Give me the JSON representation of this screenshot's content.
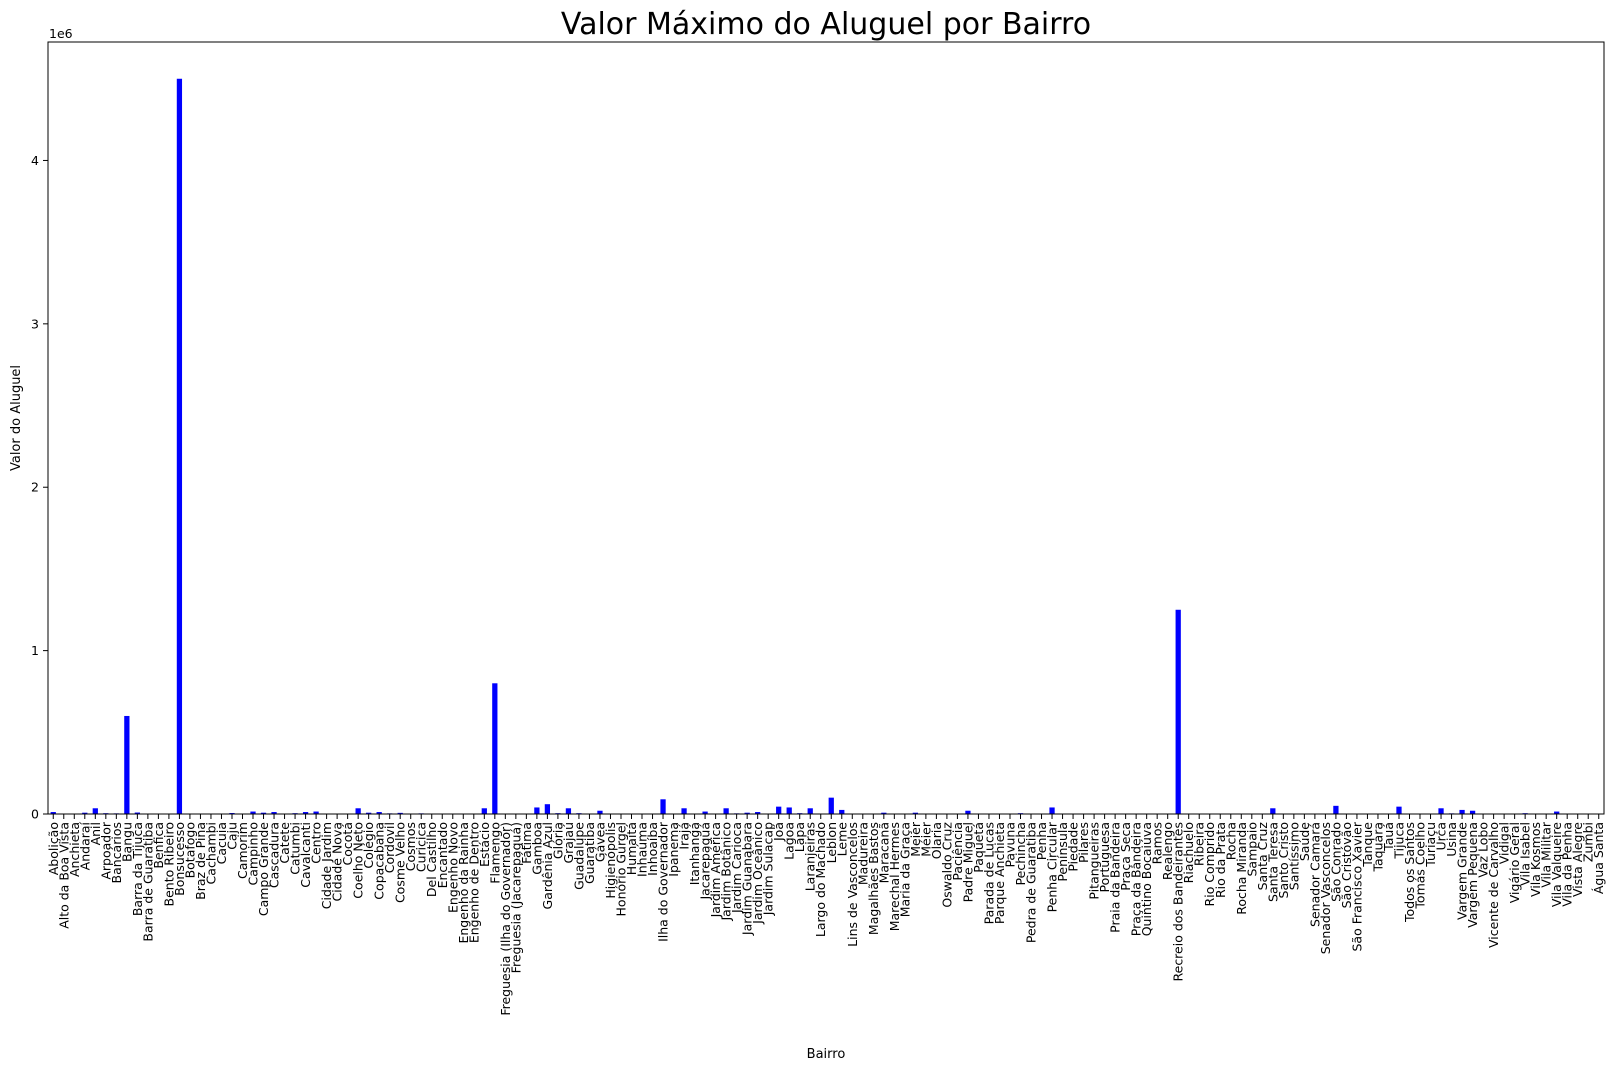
{
  "chart_data": {
    "type": "bar",
    "title": "Valor Máximo do Aluguel por Bairro",
    "xlabel": "Bairro",
    "ylabel": "Valor do Aluguel",
    "offset_text": "1e6",
    "ylim": [
      0,
      4725000
    ],
    "yticks": [
      0,
      1000000,
      2000000,
      3000000,
      4000000
    ],
    "ytick_labels": [
      "0",
      "1",
      "2",
      "3",
      "4"
    ],
    "bar_color": "#0000ff",
    "grid": false,
    "categories": [
      "Abolição",
      "Alto da Boa Vista",
      "Anchieta",
      "Andaraí",
      "Anil",
      "Arpoador",
      "Bancários",
      "Bangu",
      "Barra da Tijuca",
      "Barra de Guaratiba",
      "Benfica",
      "Bento Ribeiro",
      "Bonsucesso",
      "Botafogo",
      "Braz de Pina",
      "Cachambi",
      "Cacuia",
      "Caju",
      "Camorim",
      "Campinho",
      "Campo Grande",
      "Cascadura",
      "Catete",
      "Catumbi",
      "Cavalcanti",
      "Centro",
      "Cidade Jardim",
      "Cidade Nova",
      "Cocotá",
      "Coelho Neto",
      "Colégio",
      "Copacabana",
      "Cordovil",
      "Cosme Velho",
      "Cosmos",
      "Curicica",
      "Del Castilho",
      "Encantado",
      "Engenho Novo",
      "Engenho da Rainha",
      "Engenho de Dentro",
      "Estácio",
      "Flamengo",
      "Freguesia (Ilha do Governador)",
      "Freguesia (Jacarepaguá)",
      "Fátima",
      "Gamboa",
      "Gardênia Azul",
      "Glória",
      "Grajaú",
      "Guadalupe",
      "Guaratiba",
      "Gávea",
      "Higienópolis",
      "Honório Gurgel",
      "Humaitá",
      "Inhaúma",
      "Inhoaíba",
      "Ilha do Governador",
      "Ipanema",
      "Irajá",
      "Itanhangá",
      "Jacarepaguá",
      "Jardim América",
      "Jardim Botânico",
      "Jardim Carioca",
      "Jardim Guanabara",
      "Jardim Oceânico",
      "Jardim Sulacap",
      "Joá",
      "Lagoa",
      "Lapa",
      "Laranjeiras",
      "Largo do Machado",
      "Leblon",
      "Leme",
      "Lins de Vasconcelos",
      "Madureira",
      "Magalhães Bastos",
      "Maracanã",
      "Marechal Hermes",
      "Maria da Graça",
      "Meier",
      "Méier",
      "Olaria",
      "Oswaldo Cruz",
      "Paciência",
      "Padre Miguel",
      "Paquetá",
      "Parada de Lucas",
      "Parque Anchieta",
      "Pavuna",
      "Pechincha",
      "Pedra de Guaratiba",
      "Penha",
      "Penha Circular",
      "Península",
      "Piedade",
      "Pilares",
      "Pitangueiras",
      "Portuguesa",
      "Praia da Bandeira",
      "Praça Seca",
      "Praça da Bandeira",
      "Quintino Bocaiúva",
      "Ramos",
      "Realengo",
      "Recreio dos Bandeirantes",
      "Riachuelo",
      "Ribeira",
      "Rio Comprido",
      "Rio da Prata",
      "Rocha",
      "Rocha Miranda",
      "Sampaio",
      "Santa Cruz",
      "Santa Teresa",
      "Santo Cristo",
      "Santíssimo",
      "Saúde",
      "Senador Camará",
      "Senador Vasconcelos",
      "São Conrado",
      "São Cristóvão",
      "São Francisco Xavier",
      "Tanque",
      "Taquara",
      "Tauá",
      "Tijuca",
      "Todos os Santos",
      "Tomás Coelho",
      "Turiaçu",
      "Urca",
      "Usina",
      "Vargem Grande",
      "Vargem Pequena",
      "Vaz Lobo",
      "Vicente de Carvalho",
      "Vidigal",
      "Vigário Geral",
      "Vila Isabel",
      "Vila Kosmos",
      "Vila Militar",
      "Vila Valqueire",
      "Vila da Penha",
      "Vista Alegre",
      "Zumbi",
      "Água Santa"
    ],
    "values": [
      12000,
      2000,
      3000,
      8000,
      35000,
      5000,
      4000,
      600000,
      9000,
      3000,
      2000,
      2000,
      4500000,
      2000,
      2000,
      3000,
      2000,
      6000,
      3000,
      15000,
      8000,
      12000,
      3000,
      5000,
      12000,
      15000,
      3000,
      3000,
      2000,
      35000,
      8000,
      12000,
      4000,
      7000,
      3000,
      4000,
      2000,
      3000,
      2000,
      3000,
      2000,
      35000,
      800000,
      3000,
      2000,
      3000,
      40000,
      60000,
      5000,
      35000,
      5000,
      2000,
      20000,
      3000,
      2000,
      2000,
      2000,
      2000,
      90000,
      3000,
      35000,
      3000,
      15000,
      3000,
      35000,
      4000,
      8000,
      12000,
      3000,
      45000,
      40000,
      5000,
      35000,
      3000,
      100000,
      25000,
      3000,
      2000,
      2000,
      8000,
      3000,
      2000,
      8000,
      3000,
      3000,
      3000,
      3000,
      20000,
      3000,
      3000,
      2000,
      3000,
      5000,
      2000,
      3000,
      40000,
      3000,
      2000,
      2000,
      2000,
      2000,
      3000,
      2000,
      2000,
      3000,
      2000,
      2000,
      1250000,
      3000,
      2000,
      3000,
      2000,
      2000,
      3000,
      2000,
      3000,
      35000,
      3000,
      2000,
      2000,
      3000,
      2000,
      50000,
      3000,
      3000,
      2000,
      3000,
      3000,
      45000,
      3000,
      3000,
      2000,
      35000,
      4000,
      25000,
      20000,
      3000,
      3000,
      2000,
      2000,
      5000,
      3000,
      3000,
      15000,
      3000,
      3000,
      2000,
      3000
    ]
  }
}
